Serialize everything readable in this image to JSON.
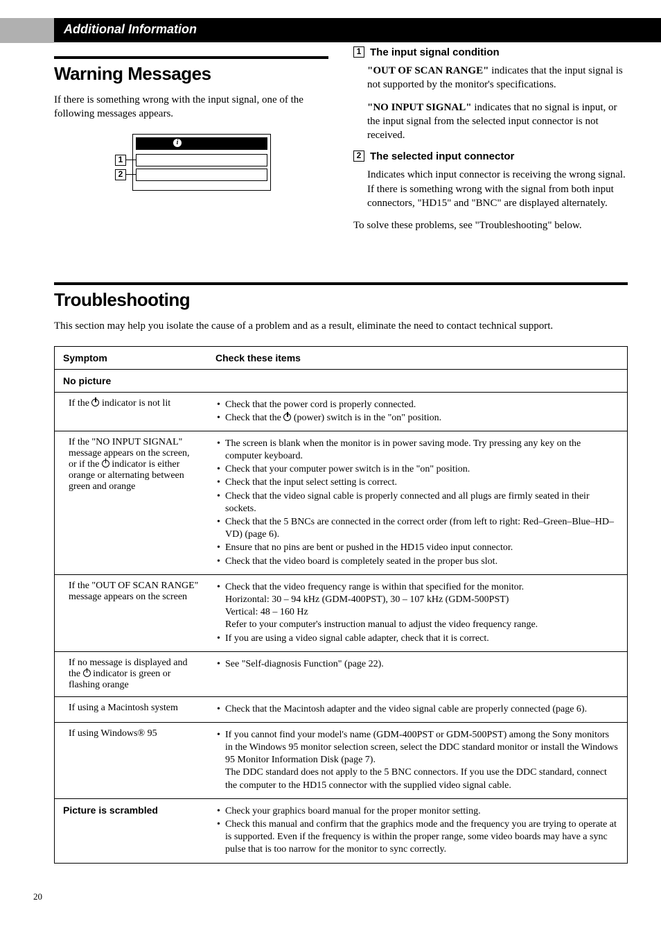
{
  "header": {
    "section_label": "Additional Information"
  },
  "warning": {
    "title": "Warning Messages",
    "intro": "If there is something wrong with the input signal, one of the following messages appears.",
    "diagram": {
      "info_glyph": "i"
    },
    "item1": {
      "num": "1",
      "title": "The input signal condition",
      "p1_bold": "\"OUT OF SCAN RANGE\"",
      "p1_rest": " indicates that the input signal is not supported by the monitor's specifications.",
      "p2_bold": "\"NO INPUT SIGNAL\"",
      "p2_rest": " indicates that no signal is input, or the input signal from the selected input connector is not received."
    },
    "item2": {
      "num": "2",
      "title": "The selected input connector",
      "p1": "Indicates which input connector is receiving the wrong signal. If there is something wrong with the signal from both input connectors, \"HD15\" and \"BNC\" are displayed alternately."
    },
    "solve": "To solve these problems, see \"Troubleshooting\" below."
  },
  "troubleshooting": {
    "title": "Troubleshooting",
    "intro": "This section may help you isolate the cause of a problem and as a result, eliminate the need to contact technical support.",
    "table": {
      "col_symptom": "Symptom",
      "col_check": "Check these items",
      "group_no_picture": "No picture",
      "rows": [
        {
          "sym_pre": "If the ",
          "sym_post": " indicator  is not lit",
          "sym_has_icon": true,
          "checks": [
            "Check that the power cord is properly connected.",
            "Check that the ⏻ (power) switch is in the \"on\" position."
          ]
        },
        {
          "sym_pre": "If the \"NO INPUT SIGNAL\" message appears on the screen, or if the ",
          "sym_post": " indicator is either orange or alternating between green and orange",
          "sym_has_icon": true,
          "checks": [
            "The screen is blank when the monitor is in power saving mode. Try pressing any key on the computer keyboard.",
            "Check that your computer power switch is in the \"on\" position.",
            "Check that the input select setting is correct.",
            "Check that the video signal cable is properly connected and all plugs are firmly seated in their sockets.",
            "Check that the 5 BNCs are connected in the correct order (from left to right: Red–Green–Blue–HD–VD) (page 6).",
            "Ensure that no pins are bent or pushed in the HD15 video input connector.",
            "Check that the video board is completely seated in the proper bus slot."
          ]
        },
        {
          "sym": "If the \"OUT OF SCAN RANGE\" message appears on the screen",
          "checks_mixed": [
            {
              "type": "bullet",
              "text": "Check that the video frequency range is within that specified for the monitor.\nHorizontal: 30 – 94 kHz (GDM-400PST), 30 – 107 kHz (GDM-500PST)\nVertical: 48 – 160 Hz\nRefer to your computer's instruction manual to adjust the video frequency range."
            },
            {
              "type": "bullet",
              "text": "If you are using a video signal cable adapter, check that it is correct."
            }
          ]
        },
        {
          "sym_pre": "If no message is displayed and the ",
          "sym_post": " indicator is green or flashing orange",
          "sym_has_icon": true,
          "checks": [
            "See \"Self-diagnosis Function\" (page 22)."
          ]
        },
        {
          "sym": "If using a Macintosh system",
          "checks": [
            "Check that the Macintosh adapter and the video signal cable are properly connected (page 6)."
          ]
        },
        {
          "sym": "If using Windows® 95",
          "checks_mixed": [
            {
              "type": "bullet",
              "text": "If you cannot find your model's name (GDM-400PST or GDM-500PST) among the Sony monitors in the Windows 95 monitor selection screen, select the DDC standard monitor or install the Windows 95 Monitor Information Disk (page 7).\nThe DDC standard does not apply to the 5 BNC connectors. If you use the DDC standard, connect the computer to the HD15 connector with the supplied video signal cable."
            }
          ]
        }
      ],
      "group_scrambled": "Picture is scrambled",
      "scrambled_checks": [
        "Check your graphics board manual for the proper monitor setting.",
        "Check this manual and confirm that the graphics mode and the frequency you are trying to operate at is supported. Even if the frequency is within the proper range, some video boards may have a sync pulse that is too narrow for the monitor to sync correctly."
      ]
    }
  },
  "page_number": "20",
  "colors": {
    "black": "#000000",
    "white": "#ffffff",
    "gray_tab": "#b0b0b0"
  }
}
